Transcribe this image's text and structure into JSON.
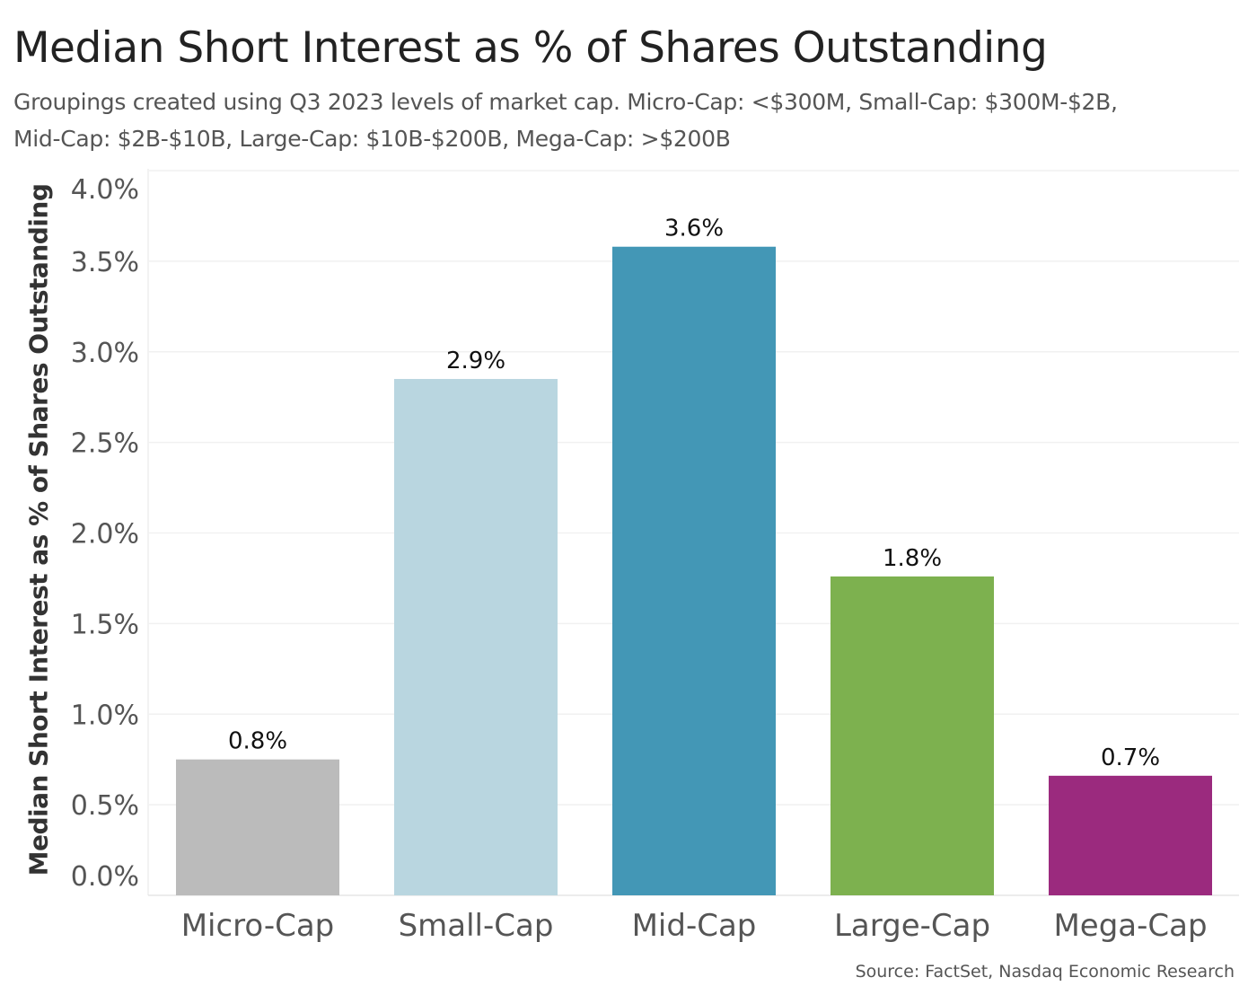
{
  "chart_data": {
    "type": "bar",
    "title": "Median Short Interest as % of Shares Outstanding",
    "subtitle": "Groupings created using Q3 2023 levels of market cap. Micro-Cap: <$300M, Small-Cap: $300M-$2B, Mid-Cap: $2B-$10B, Large-Cap: $10B-$200B, Mega-Cap: >$200B",
    "xlabel": "",
    "ylabel": "Median Short Interest as % of Shares Outstanding",
    "ylim": [
      0,
      4.0
    ],
    "yticks": [
      "0.0%",
      "0.5%",
      "1.0%",
      "1.5%",
      "2.0%",
      "2.5%",
      "3.0%",
      "3.5%",
      "4.0%"
    ],
    "grid": true,
    "categories": [
      "Micro-Cap",
      "Small-Cap",
      "Mid-Cap",
      "Large-Cap",
      "Mega-Cap"
    ],
    "values": [
      0.75,
      2.85,
      3.58,
      1.76,
      0.66
    ],
    "data_labels": [
      "0.8%",
      "2.9%",
      "3.6%",
      "1.8%",
      "0.7%"
    ],
    "colors": [
      "#bbbbbb",
      "#b9d6e0",
      "#4397b6",
      "#7db14f",
      "#9b2a7e"
    ],
    "source": "Source: FactSet, Nasdaq Economic Research"
  }
}
